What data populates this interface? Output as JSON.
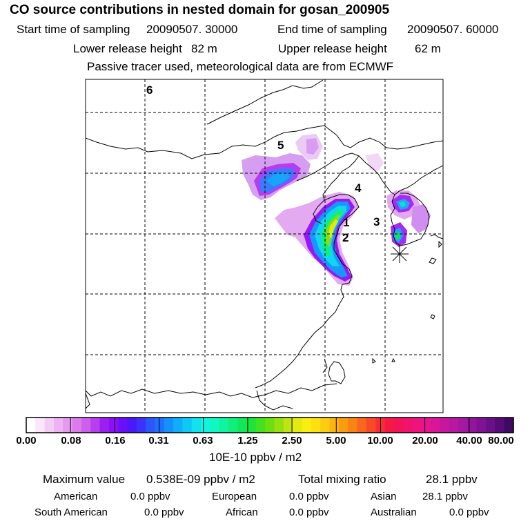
{
  "header": {
    "title": "CO  source contributions in nested domain for gosan_200905",
    "start_label": "Start time of sampling",
    "start_value": "20090507. 30000",
    "end_label": "End time of sampling",
    "end_value": "20090507. 60000",
    "lower_label": "Lower release height",
    "lower_value": "82 m",
    "upper_label": "Upper release height",
    "upper_value": "62 m",
    "note": "Passive tracer used, meteorological data are from ECMWF"
  },
  "map": {
    "region_labels": [
      "1",
      "2",
      "3",
      "4",
      "5",
      "6"
    ]
  },
  "colorbar": {
    "unit": "10E-10 ppbv / m2",
    "ticks": [
      "0.00",
      "0.08",
      "0.16",
      "0.31",
      "0.63",
      "1.25",
      "2.50",
      "5.00",
      "10.00",
      "20.00",
      "40.00",
      "80.00"
    ],
    "colors": [
      "#ffffff",
      "#fbe6fb",
      "#f4cdf6",
      "#edb3f2",
      "#e59aee",
      "#dc7cec",
      "#cd5fec",
      "#b83fee",
      "#9c1ff2",
      "#8a10f5",
      "#6a10f8",
      "#4b18fa",
      "#3b33fb",
      "#2c55fc",
      "#2070fd",
      "#1690fd",
      "#10adfb",
      "#10c8f6",
      "#10e2ee",
      "#10f5e0",
      "#10f7c0",
      "#10f3a0",
      "#10ef7c",
      "#10e85a",
      "#1de33b",
      "#44e11f",
      "#6ddf10",
      "#96e010",
      "#bfe410",
      "#e4ea10",
      "#f8ee10",
      "#fce010",
      "#fccc10",
      "#fbb510",
      "#fb9c10",
      "#fb8214",
      "#fa661d",
      "#f94a28",
      "#f72f35",
      "#f51a46",
      "#f31359",
      "#f1136c",
      "#ef1380",
      "#e71490",
      "#d91598",
      "#c8169e",
      "#b718a1",
      "#a519a2",
      "#91169c",
      "#7e1393",
      "#6b1086",
      "#560c76",
      "#3f0861"
    ]
  },
  "footer": {
    "max_label": "Maximum value",
    "max_value": "0.538E-09 ppbv / m2",
    "total_label": "Total mixing ratio",
    "total_value": "28.1 ppbv",
    "american_label": "American",
    "american_value": "0.0 ppbv",
    "european_label": "European",
    "european_value": "0.0 ppbv",
    "asian_label": "Asian",
    "asian_value": "28.1 ppbv",
    "south_american_label": "South American",
    "south_american_value": "0.0 ppbv",
    "african_label": "African",
    "african_value": "0.0 ppbv",
    "australian_label": "Australian",
    "australian_value": "0.0 ppbv"
  }
}
